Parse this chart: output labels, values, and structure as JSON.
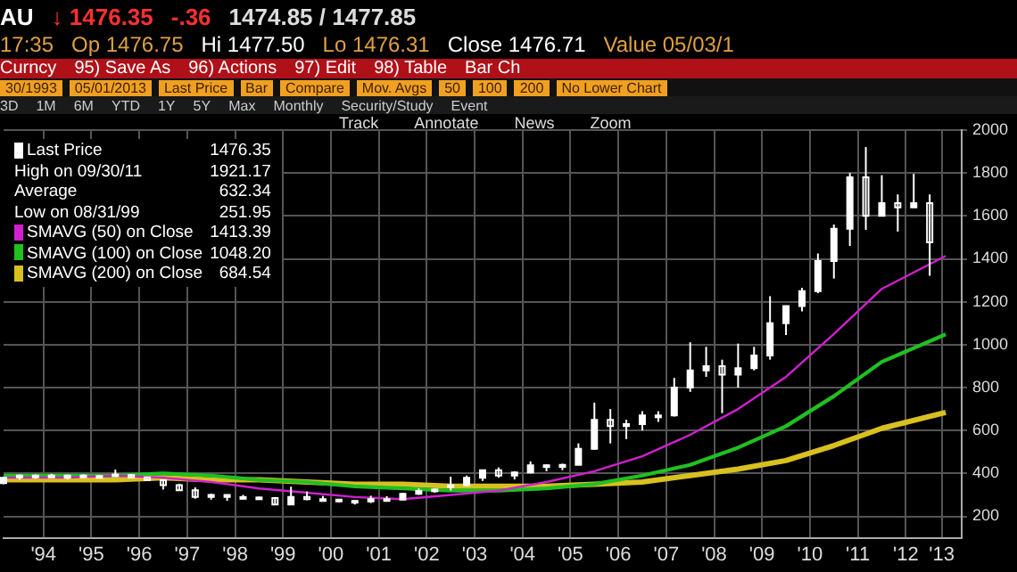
{
  "chart_data": {
    "type": "candlestick",
    "legend": "top left",
    "grid": true,
    "marker": "none",
    "line_style": "solid",
    "xlim": [
      "1993-09",
      "2013-09"
    ],
    "ylim": [
      100,
      2000
    ],
    "yticks": [
      200,
      400,
      600,
      800,
      1000,
      1200,
      1400,
      1600,
      1800,
      2000
    ],
    "xticks": [
      {
        "value": "1994-07",
        "label": "'94"
      },
      {
        "value": "1995-07",
        "label": "'95"
      },
      {
        "value": "1996-07",
        "label": "'96"
      },
      {
        "value": "1997-07",
        "label": "'97"
      },
      {
        "value": "1998-07",
        "label": "'98"
      },
      {
        "value": "1999-07",
        "label": "'99"
      },
      {
        "value": "2000-07",
        "label": "'00"
      },
      {
        "value": "2001-07",
        "label": "'01"
      },
      {
        "value": "2002-07",
        "label": "'02"
      },
      {
        "value": "2003-07",
        "label": "'03"
      },
      {
        "value": "2004-07",
        "label": "'04"
      },
      {
        "value": "2005-07",
        "label": "'05"
      },
      {
        "value": "2006-07",
        "label": "'06"
      },
      {
        "value": "2007-07",
        "label": "'07"
      },
      {
        "value": "2008-07",
        "label": "'08"
      },
      {
        "value": "2009-07",
        "label": "'09"
      },
      {
        "value": "2010-07",
        "label": "'10"
      },
      {
        "value": "2011-07",
        "label": "'11"
      },
      {
        "value": "2012-07",
        "label": "'12"
      },
      {
        "value": "2013-04",
        "label": "'13"
      }
    ],
    "series": [
      {
        "name": "Last Price",
        "color": "#ffffff",
        "x": [
          "1993-09",
          "1994-01",
          "1994-05",
          "1994-09",
          "1995-01",
          "1995-05",
          "1995-09",
          "1996-01",
          "1996-05",
          "1996-09",
          "1997-01",
          "1997-05",
          "1997-09",
          "1998-01",
          "1998-05",
          "1998-09",
          "1999-01",
          "1999-05",
          "1999-09",
          "2000-01",
          "2000-05",
          "2000-09",
          "2001-01",
          "2001-05",
          "2001-09",
          "2002-01",
          "2002-05",
          "2002-09",
          "2003-01",
          "2003-05",
          "2003-09",
          "2004-01",
          "2004-05",
          "2004-09",
          "2005-01",
          "2005-05",
          "2005-09",
          "2006-01",
          "2006-05",
          "2006-09",
          "2007-01",
          "2007-05",
          "2007-09",
          "2008-01",
          "2008-05",
          "2008-09",
          "2009-01",
          "2009-05",
          "2009-09",
          "2010-01",
          "2010-05",
          "2010-09",
          "2011-01",
          "2011-05",
          "2011-09",
          "2012-01",
          "2012-05",
          "2012-09",
          "2013-01"
        ],
        "ohlc": [
          [
            355,
            385,
            350,
            380
          ],
          [
            390,
            395,
            370,
            385
          ],
          [
            385,
            395,
            375,
            390
          ],
          [
            390,
            398,
            380,
            385
          ],
          [
            380,
            395,
            372,
            390
          ],
          [
            390,
            396,
            380,
            385
          ],
          [
            385,
            392,
            380,
            388
          ],
          [
            390,
            418,
            385,
            395
          ],
          [
            392,
            395,
            378,
            382
          ],
          [
            382,
            385,
            365,
            368
          ],
          [
            368,
            370,
            325,
            345
          ],
          [
            345,
            352,
            318,
            322
          ],
          [
            322,
            335,
            282,
            290
          ],
          [
            290,
            305,
            278,
            300
          ],
          [
            300,
            302,
            273,
            290
          ],
          [
            290,
            300,
            280,
            290
          ],
          [
            288,
            292,
            280,
            285
          ],
          [
            285,
            290,
            251.95,
            255
          ],
          [
            255,
            338,
            252,
            290
          ],
          [
            290,
            316,
            275,
            280
          ],
          [
            280,
            295,
            270,
            278
          ],
          [
            278,
            280,
            264,
            272
          ],
          [
            272,
            275,
            255,
            270
          ],
          [
            270,
            296,
            262,
            280
          ],
          [
            280,
            294,
            272,
            278
          ],
          [
            278,
            310,
            276,
            305
          ],
          [
            305,
            330,
            300,
            318
          ],
          [
            318,
            330,
            310,
            325
          ],
          [
            345,
            385,
            320,
            345
          ],
          [
            345,
            390,
            340,
            380
          ],
          [
            380,
            417,
            365,
            415
          ],
          [
            415,
            428,
            380,
            390
          ],
          [
            390,
            410,
            372,
            405
          ],
          [
            405,
            456,
            400,
            438
          ],
          [
            438,
            442,
            410,
            430
          ],
          [
            430,
            445,
            415,
            440
          ],
          [
            440,
            540,
            440,
            515
          ],
          [
            515,
            730,
            510,
            650
          ],
          [
            650,
            700,
            540,
            620
          ],
          [
            620,
            650,
            560,
            630
          ],
          [
            630,
            690,
            600,
            670
          ],
          [
            670,
            690,
            640,
            670
          ],
          [
            670,
            845,
            665,
            800
          ],
          [
            800,
            1011,
            780,
            880
          ],
          [
            880,
            990,
            850,
            900
          ],
          [
            900,
            930,
            681,
            860
          ],
          [
            860,
            1005,
            800,
            890
          ],
          [
            890,
            990,
            880,
            950
          ],
          [
            950,
            1226,
            930,
            1100
          ],
          [
            1100,
            1180,
            1045,
            1180
          ],
          [
            1180,
            1265,
            1155,
            1250
          ],
          [
            1250,
            1425,
            1240,
            1390
          ],
          [
            1390,
            1560,
            1308,
            1540
          ],
          [
            1540,
            1800,
            1460,
            1780
          ],
          [
            1780,
            1921.17,
            1535,
            1600
          ],
          [
            1600,
            1790,
            1600,
            1660
          ],
          [
            1660,
            1700,
            1527,
            1640
          ],
          [
            1640,
            1796,
            1640,
            1660
          ],
          [
            1660,
            1700,
            1321,
            1476.35
          ]
        ]
      },
      {
        "name": "SMAVG (50) on Close",
        "type": "line",
        "color": "#d020d0",
        "x": [
          "1993-09",
          "1995-01",
          "1996-01",
          "1997-01",
          "1998-01",
          "1999-01",
          "2000-01",
          "2001-01",
          "2002-01",
          "2003-01",
          "2004-01",
          "2005-01",
          "2006-01",
          "2007-01",
          "2008-01",
          "2009-01",
          "2010-01",
          "2011-01",
          "2012-01",
          "2013-05"
        ],
        "values": [
          380,
          380,
          390,
          380,
          360,
          330,
          310,
          290,
          280,
          300,
          320,
          360,
          410,
          480,
          580,
          700,
          850,
          1050,
          1260,
          1413.39
        ]
      },
      {
        "name": "SMAVG (100) on Close",
        "type": "line",
        "color": "#20c020",
        "x": [
          "1993-09",
          "1995-01",
          "1996-01",
          "1997-01",
          "1998-01",
          "1999-01",
          "2000-01",
          "2001-01",
          "2002-01",
          "2003-01",
          "2004-01",
          "2005-01",
          "2006-01",
          "2007-01",
          "2008-01",
          "2009-01",
          "2010-01",
          "2011-01",
          "2012-01",
          "2013-05"
        ],
        "values": [
          390,
          390,
          390,
          400,
          390,
          370,
          360,
          340,
          330,
          320,
          320,
          330,
          350,
          390,
          440,
          520,
          620,
          760,
          920,
          1048.2
        ]
      },
      {
        "name": "SMAVG (200) on Close",
        "type": "line",
        "color": "#d8c020",
        "x": [
          "1993-09",
          "1995-01",
          "1996-01",
          "1997-01",
          "1998-01",
          "1999-01",
          "2000-01",
          "2001-01",
          "2002-01",
          "2003-01",
          "2004-01",
          "2005-01",
          "2006-01",
          "2007-01",
          "2008-01",
          "2009-01",
          "2010-01",
          "2011-01",
          "2012-01",
          "2013-05"
        ],
        "values": [
          370,
          370,
          370,
          380,
          370,
          370,
          360,
          350,
          350,
          340,
          340,
          340,
          350,
          360,
          390,
          420,
          460,
          530,
          610,
          684.54
        ]
      }
    ],
    "annotations": [
      "AU",
      "↓ 1476.35",
      "-.36",
      "1474.85 / 1477.85",
      "17:35",
      "Op 1476.75",
      "Hi 1477.50",
      "Lo 1476.31",
      "Close 1476.71",
      "Value 05/03/1",
      "Curncy",
      "95) Save As",
      "96) Actions",
      "97) Edit",
      "98) Table",
      "Bar Ch",
      "30/1993",
      "05/01/2013",
      "Last Price",
      "Bar",
      "Compare",
      "Mov. Avgs",
      "50",
      "100",
      "200",
      "No Lower Chart",
      "3D",
      "1M",
      "6M",
      "YTD",
      "1Y",
      "5Y",
      "Max",
      "Monthly",
      "Security/Study",
      "Event",
      "Track",
      "Annotate",
      "News",
      "Zoom",
      "1476.35",
      "High on 09/30/11",
      "1921.17",
      "Average",
      "632.34",
      "Low on 08/31/99",
      "251.95",
      "1413.39",
      "1048.20",
      "684.54"
    ]
  }
}
